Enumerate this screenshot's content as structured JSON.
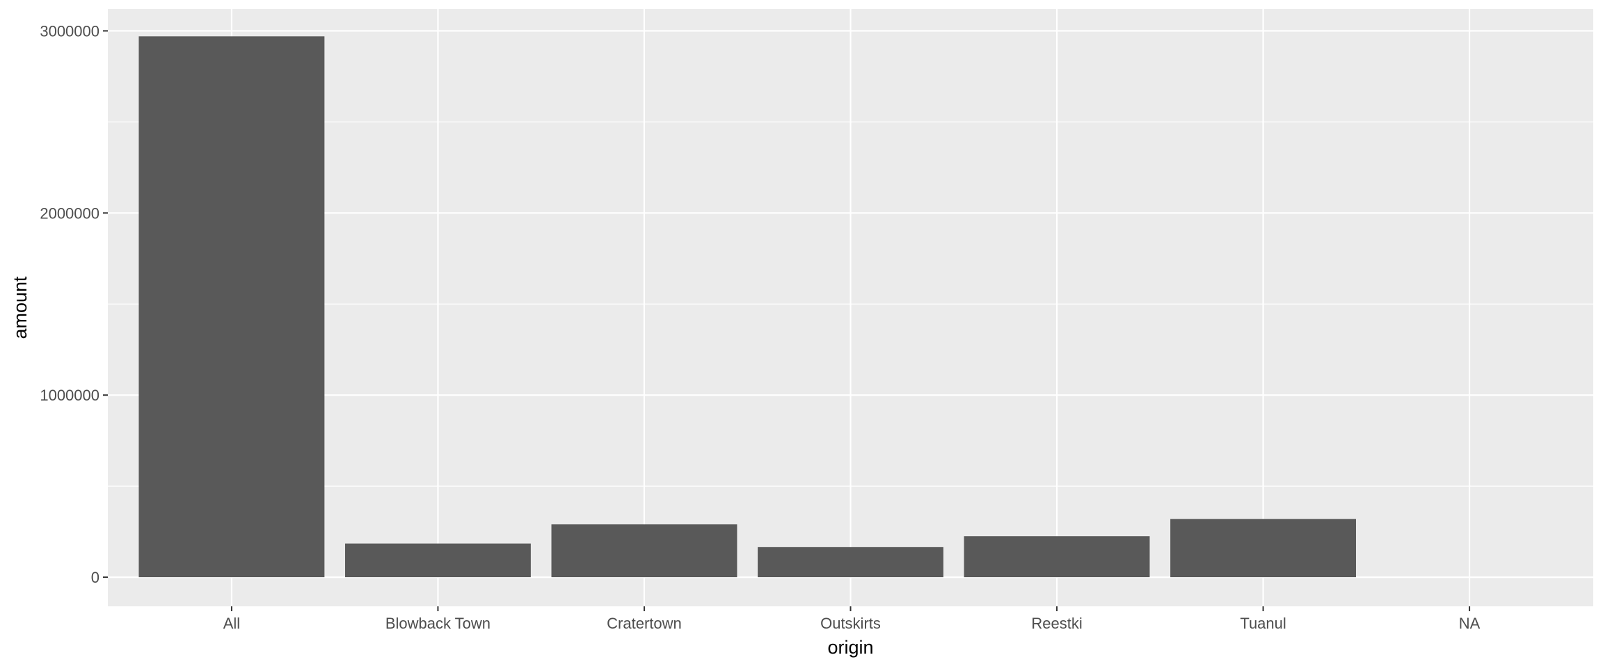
{
  "chart_data": {
    "type": "bar",
    "categories": [
      "All",
      "Blowback Town",
      "Cratertown",
      "Outskirts",
      "Reestki",
      "Tuanul",
      "NA"
    ],
    "values": [
      2970000,
      185000,
      290000,
      165000,
      225000,
      320000,
      0
    ],
    "title": "",
    "xlabel": "origin",
    "ylabel": "amount",
    "ylim": [
      -160000,
      3120000
    ],
    "yticks": [
      0,
      1000000,
      2000000,
      3000000
    ],
    "ytick_labels": [
      "0",
      "1000000",
      "2000000",
      "3000000"
    ],
    "grid": true,
    "legend": "none",
    "colors": {
      "bar": "#595959",
      "panel_background": "#ebebeb",
      "grid_major": "#ffffff",
      "tick_label": "#4d4d4d"
    }
  }
}
